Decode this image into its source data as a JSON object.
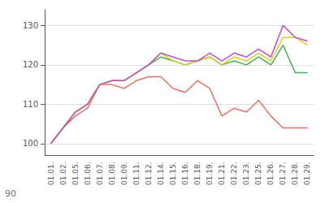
{
  "chart_data": {
    "type": "line",
    "categories": [
      "01.01.",
      "01.02.",
      "01.05.",
      "01.06.",
      "01.07.",
      "01.08.",
      "01.09.",
      "01.11.",
      "01.12.",
      "01.14.",
      "01.15.",
      "01.16.",
      "01.18.",
      "01.19.",
      "01.21.",
      "01.22.",
      "01.23.",
      "01.25.",
      "01.26.",
      "01.27.",
      "01.28.",
      "01.29."
    ],
    "series": [
      {
        "color": "#e87060",
        "values": [
          100,
          104,
          107,
          109,
          115,
          115,
          114,
          116,
          117,
          117,
          114,
          113,
          116,
          114,
          107,
          109,
          108,
          111,
          107,
          104,
          104,
          104
        ]
      },
      {
        "color": "#4ab04a",
        "values": [
          100,
          104,
          108,
          110,
          115,
          116,
          116,
          118,
          120,
          122,
          121,
          120,
          121,
          122,
          120,
          121,
          120,
          122,
          120,
          125,
          118,
          118
        ]
      },
      {
        "color": "#d4d030",
        "values": [
          100,
          104,
          108,
          110,
          115,
          116,
          116,
          118,
          120,
          123,
          121,
          120,
          121,
          122,
          120,
          122,
          121,
          123,
          121,
          127,
          127,
          125
        ]
      },
      {
        "color": "#c050c0",
        "values": [
          100,
          104,
          108,
          110,
          115,
          116,
          116,
          118,
          120,
          123,
          122,
          121,
          121,
          123,
          121,
          123,
          122,
          124,
          122,
          130,
          127,
          126
        ]
      }
    ],
    "ylim": [
      97,
      134
    ],
    "yticks": [
      100,
      110,
      120,
      130
    ],
    "grid": true,
    "annotations": [
      "90"
    ]
  }
}
